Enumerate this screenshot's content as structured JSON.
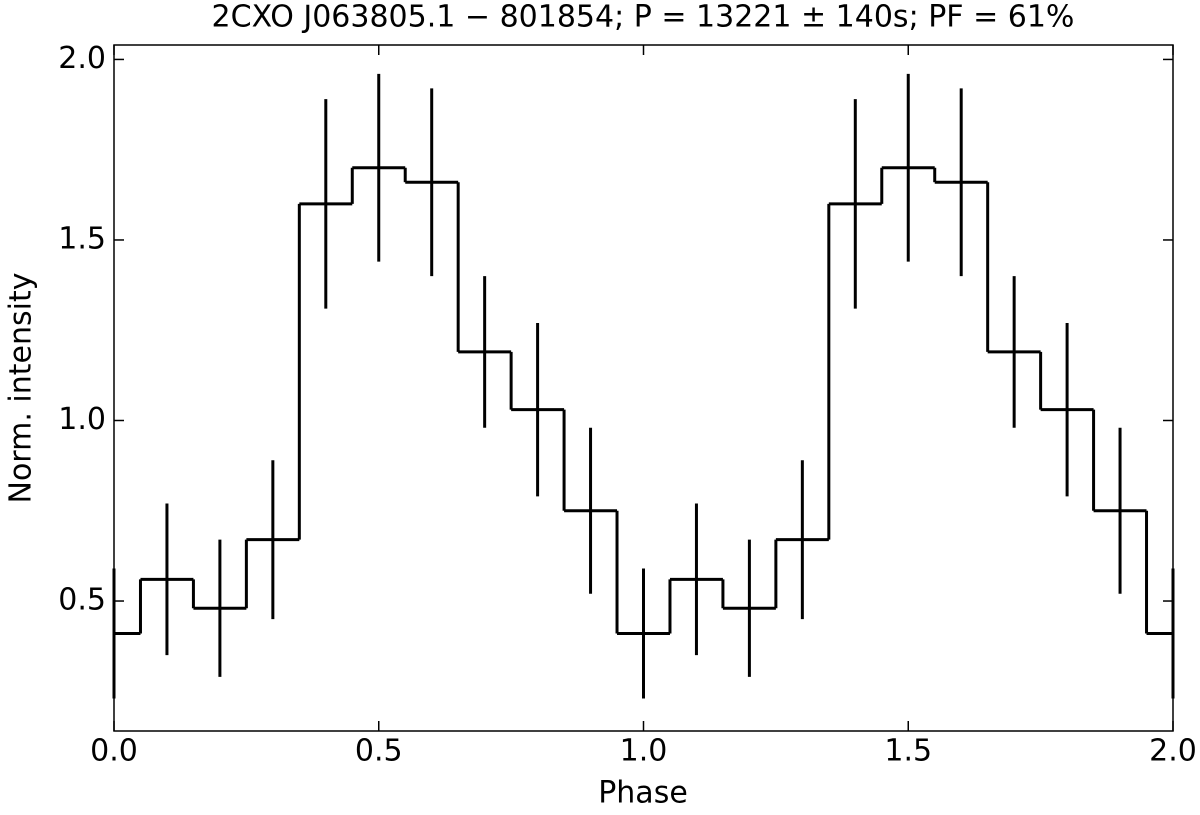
{
  "chart_data": {
    "type": "step-errorbar",
    "title": "2CXO J063805.1 − 801854;  P = 13221 ± 140s;  PF = 61%",
    "x_label": "Phase",
    "y_label": "Norm. intensity",
    "x": [
      0.0,
      0.1,
      0.2,
      0.3,
      0.4,
      0.5,
      0.6,
      0.7,
      0.8,
      0.9,
      1.0,
      1.1,
      1.2,
      1.3,
      1.4,
      1.5,
      1.6,
      1.7,
      1.8,
      1.9,
      2.0
    ],
    "values": [
      0.41,
      0.56,
      0.48,
      0.67,
      1.6,
      1.7,
      1.66,
      1.19,
      1.03,
      0.75,
      0.41,
      0.56,
      0.48,
      0.67,
      1.6,
      1.7,
      1.66,
      1.19,
      1.03,
      0.75,
      0.41
    ],
    "errors": [
      0.18,
      0.21,
      0.19,
      0.22,
      0.29,
      0.26,
      0.26,
      0.21,
      0.24,
      0.23,
      0.18,
      0.21,
      0.19,
      0.22,
      0.29,
      0.26,
      0.26,
      0.21,
      0.24,
      0.23,
      0.18
    ],
    "color": "#000000",
    "xlim": [
      0.0,
      2.0
    ],
    "ylim": [
      0.14,
      2.04
    ],
    "xticks": [
      {
        "value": 0.0,
        "label": "0.0"
      },
      0.5,
      {
        "value": 1.0,
        "label": "1.0"
      },
      1.5,
      {
        "value": 2.0,
        "label": "2.0"
      }
    ],
    "yticks": [
      0.5,
      {
        "value": 1.0,
        "label": "1.0"
      },
      1.5,
      {
        "value": 2.0,
        "label": "2.0"
      }
    ]
  }
}
